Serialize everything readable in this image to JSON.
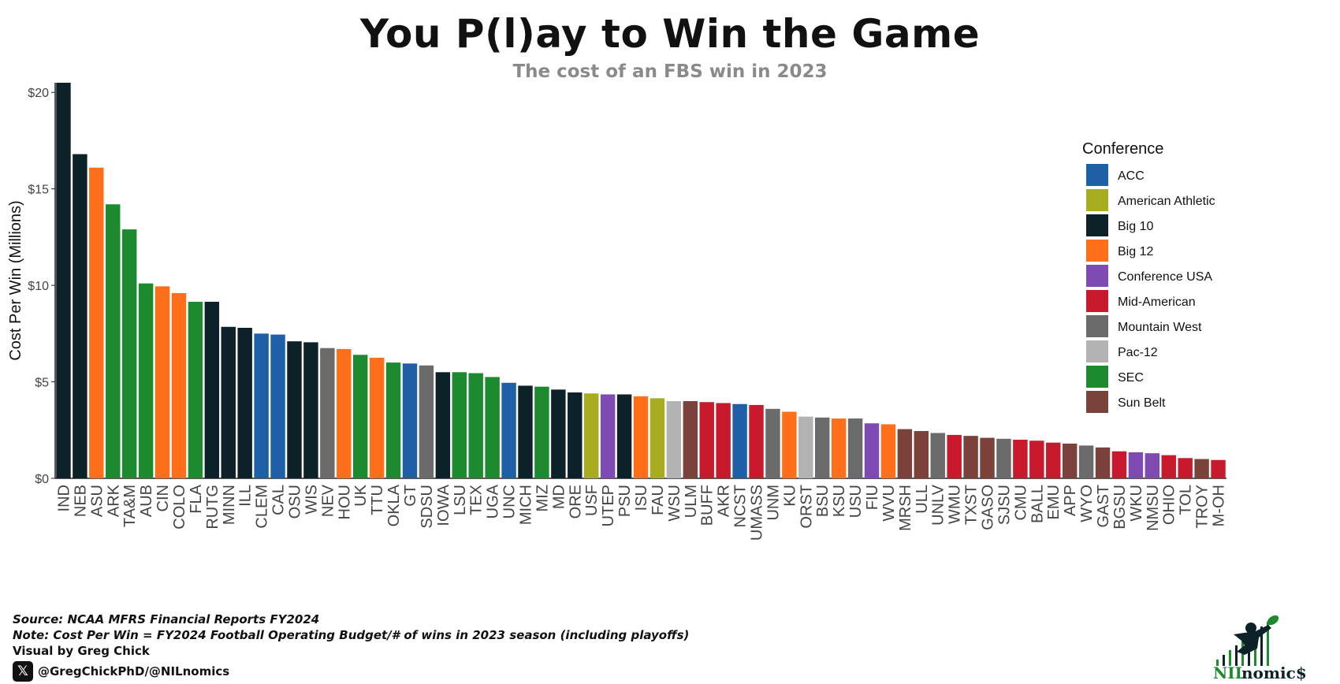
{
  "title": "You P(l)ay to Win the Game",
  "subtitle": "The cost of an FBS win in 2023",
  "footer": {
    "source": "Source: NCAA MFRS Financial Reports FY2024",
    "note": "Note: Cost Per Win = FY2024 Football Operating Budget/# of wins in 2023 season (including playoffs)",
    "credit": "Visual by Greg Chick",
    "handle": "@GregChickPhD/@NILnomics",
    "x_icon": "x-logo-icon"
  },
  "logo": {
    "text_nil": "NIL",
    "text_nomics": "nomic$"
  },
  "colors": {
    "ACC": "#1f5fa6",
    "American Athletic": "#a8ad1f",
    "Big 10": "#0d2228",
    "Big 12": "#ff6f1a",
    "Conference USA": "#7d4bb1",
    "Mid-American": "#c81a2c",
    "Mountain West": "#6b6b6b",
    "Pac-12": "#b3b3b3",
    "SEC": "#1e8a30",
    "Sun Belt": "#7a423a"
  },
  "chart_data": {
    "type": "bar",
    "ylabel": "Cost Per Win (Millions)",
    "xlabel": "",
    "ylim": [
      0,
      20.5
    ],
    "yticks": [
      0,
      5,
      10,
      15,
      20
    ],
    "ytick_labels": [
      "$0",
      "$5",
      "$10",
      "$15",
      "$20"
    ],
    "grid": false,
    "legend_title": "Conference",
    "legend_position": "right",
    "legend": [
      "ACC",
      "American Athletic",
      "Big 10",
      "Big 12",
      "Conference USA",
      "Mid-American",
      "Mountain West",
      "Pac-12",
      "SEC",
      "Sun Belt"
    ],
    "categories": [
      "IND",
      "NEB",
      "ASU",
      "ARK",
      "TA&M",
      "AUB",
      "CIN",
      "COLO",
      "FLA",
      "RUTG",
      "MINN",
      "ILL",
      "CLEM",
      "CAL",
      "OSU",
      "WIS",
      "NEV",
      "HOU",
      "UK",
      "TTU",
      "OKLA",
      "GT",
      "SDSU",
      "IOWA",
      "LSU",
      "TEX",
      "UGA",
      "UNC",
      "MICH",
      "MIZ",
      "MD",
      "ORE",
      "USF",
      "UTEP",
      "PSU",
      "ISU",
      "FAU",
      "WSU",
      "ULM",
      "BUFF",
      "AKR",
      "NCST",
      "UMASS",
      "UNM",
      "KU",
      "ORST",
      "BSU",
      "KSU",
      "USU",
      "FIU",
      "WVU",
      "MRSH",
      "ULL",
      "UNLV",
      "WMU",
      "TXST",
      "GASO",
      "SJSU",
      "CMU",
      "BALL",
      "EMU",
      "APP",
      "WYO",
      "GAST",
      "BGSU",
      "WKU",
      "NMSU",
      "OHIO",
      "TOL",
      "TROY",
      "M-OH"
    ],
    "values": [
      20.5,
      16.8,
      16.1,
      14.2,
      12.9,
      10.1,
      9.95,
      9.6,
      9.15,
      9.15,
      7.85,
      7.8,
      7.5,
      7.45,
      7.1,
      7.05,
      6.75,
      6.7,
      6.4,
      6.25,
      6.0,
      5.95,
      5.85,
      5.5,
      5.5,
      5.45,
      5.25,
      4.95,
      4.8,
      4.75,
      4.6,
      4.45,
      4.4,
      4.35,
      4.35,
      4.25,
      4.15,
      4.0,
      4.0,
      3.95,
      3.9,
      3.85,
      3.8,
      3.6,
      3.45,
      3.2,
      3.15,
      3.1,
      3.1,
      2.85,
      2.8,
      2.55,
      2.45,
      2.35,
      2.25,
      2.2,
      2.1,
      2.05,
      2.0,
      1.95,
      1.85,
      1.8,
      1.7,
      1.6,
      1.4,
      1.35,
      1.3,
      1.2,
      1.05,
      1.0,
      0.95
    ],
    "conferences": [
      "Big 10",
      "Big 10",
      "Big 12",
      "SEC",
      "SEC",
      "SEC",
      "Big 12",
      "Big 12",
      "SEC",
      "Big 10",
      "Big 10",
      "Big 10",
      "ACC",
      "ACC",
      "Big 10",
      "Big 10",
      "Mountain West",
      "Big 12",
      "SEC",
      "Big 12",
      "SEC",
      "ACC",
      "Mountain West",
      "Big 10",
      "SEC",
      "SEC",
      "SEC",
      "ACC",
      "Big 10",
      "SEC",
      "Big 10",
      "Big 10",
      "American Athletic",
      "Conference USA",
      "Big 10",
      "Big 12",
      "American Athletic",
      "Pac-12",
      "Sun Belt",
      "Mid-American",
      "Mid-American",
      "ACC",
      "Mid-American",
      "Mountain West",
      "Big 12",
      "Pac-12",
      "Mountain West",
      "Big 12",
      "Mountain West",
      "Conference USA",
      "Big 12",
      "Sun Belt",
      "Sun Belt",
      "Mountain West",
      "Mid-American",
      "Sun Belt",
      "Sun Belt",
      "Mountain West",
      "Mid-American",
      "Mid-American",
      "Mid-American",
      "Sun Belt",
      "Mountain West",
      "Sun Belt",
      "Mid-American",
      "Conference USA",
      "Conference USA",
      "Mid-American",
      "Mid-American",
      "Sun Belt",
      "Mid-American"
    ]
  }
}
